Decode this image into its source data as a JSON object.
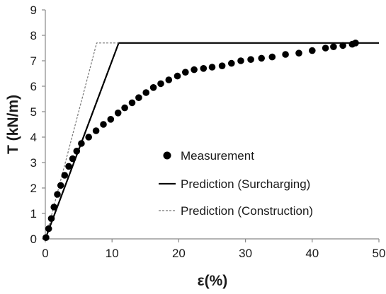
{
  "chart_data": {
    "type": "scatter",
    "title": "",
    "xlabel": "ε(%)",
    "ylabel": "T (kN/m)",
    "xlim": [
      0,
      50
    ],
    "ylim": [
      0,
      9
    ],
    "xticks": [
      0,
      10,
      20,
      30,
      40,
      50
    ],
    "yticks": [
      0,
      1,
      2,
      3,
      4,
      5,
      6,
      7,
      8,
      9
    ],
    "grid": false,
    "legend_position": "center-right",
    "series": [
      {
        "name": "Measurement",
        "kind": "markers",
        "color": "#000000",
        "points": [
          [
            0.1,
            0.05
          ],
          [
            0.5,
            0.4
          ],
          [
            0.9,
            0.8
          ],
          [
            1.3,
            1.25
          ],
          [
            1.8,
            1.75
          ],
          [
            2.3,
            2.1
          ],
          [
            2.9,
            2.5
          ],
          [
            3.5,
            2.85
          ],
          [
            4.1,
            3.15
          ],
          [
            4.7,
            3.45
          ],
          [
            5.4,
            3.75
          ],
          [
            6.5,
            4.0
          ],
          [
            7.6,
            4.25
          ],
          [
            8.7,
            4.5
          ],
          [
            9.8,
            4.7
          ],
          [
            10.9,
            4.95
          ],
          [
            11.9,
            5.15
          ],
          [
            13.0,
            5.35
          ],
          [
            14.0,
            5.55
          ],
          [
            15.1,
            5.75
          ],
          [
            16.2,
            5.95
          ],
          [
            17.3,
            6.1
          ],
          [
            18.5,
            6.25
          ],
          [
            19.8,
            6.4
          ],
          [
            21.0,
            6.55
          ],
          [
            22.3,
            6.65
          ],
          [
            23.7,
            6.7
          ],
          [
            25.0,
            6.75
          ],
          [
            26.5,
            6.8
          ],
          [
            27.9,
            6.9
          ],
          [
            29.3,
            7.0
          ],
          [
            30.8,
            7.05
          ],
          [
            32.4,
            7.1
          ],
          [
            34.0,
            7.15
          ],
          [
            36.0,
            7.25
          ],
          [
            38.0,
            7.3
          ],
          [
            40.0,
            7.4
          ],
          [
            42.0,
            7.5
          ],
          [
            43.2,
            7.55
          ],
          [
            44.6,
            7.6
          ],
          [
            46.0,
            7.65
          ],
          [
            46.5,
            7.7
          ]
        ]
      },
      {
        "name": "Prediction (Surcharging)",
        "kind": "line",
        "style": "solid",
        "color": "#000000",
        "points": [
          [
            0,
            0
          ],
          [
            11.0,
            7.7
          ],
          [
            50,
            7.7
          ]
        ]
      },
      {
        "name": "Prediction (Construction)",
        "kind": "line",
        "style": "dashed",
        "color": "#777777",
        "points": [
          [
            0,
            0
          ],
          [
            7.7,
            7.7
          ],
          [
            11.0,
            7.7
          ]
        ]
      }
    ]
  }
}
